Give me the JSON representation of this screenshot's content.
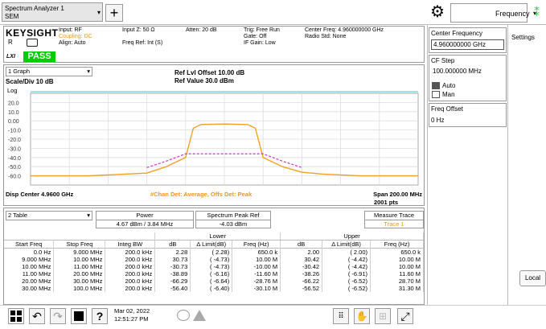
{
  "app": {
    "tab_title_line1": "Spectrum Analyzer 1",
    "tab_title_line2": "SEM"
  },
  "header": {
    "brand": "KEYSIGHT",
    "mode_letter": "R",
    "lxi": "LXI",
    "status": "PASS",
    "input": [
      "Input: RF",
      "Coupling: DC",
      "Align: Auto"
    ],
    "input_z": [
      "Input Z: 50 Ω",
      "",
      "Freq Ref: Int (S)"
    ],
    "atten": [
      "Atten: 20 dB"
    ],
    "trig": [
      "Trig: Free Run",
      "Gate: Off",
      "IF Gain: Low"
    ],
    "center": [
      "Center Freq: 4.960000000 GHz",
      "Radio Std: None"
    ]
  },
  "graph": {
    "selector": "1 Graph",
    "ref_lvl_offset": "Ref Lvl Offset 10.00 dB",
    "ref_value": "Ref Value 30.0 dBm",
    "scale": "Scale/Div 10 dB",
    "log": "Log",
    "footer_left": "Disp Center 4.9600 GHz",
    "footer_mid": "#Chan Det: Average,  Offs Det: Peak",
    "footer_right": "Span 200.00 MHz",
    "footer_pts": "2001 pts"
  },
  "chart_data": {
    "type": "line",
    "xlabel": "",
    "ylabel": "",
    "ylim": [
      -70,
      30
    ],
    "yticks": [
      "20.0",
      "10.0",
      "0.00",
      "-10.0",
      "-20.0",
      "-30.0",
      "-40.0",
      "-50.0",
      "-60.0"
    ],
    "grid": true,
    "series": [
      {
        "color": "#f0a020",
        "x": [
          0,
          0.05,
          0.1,
          0.15,
          0.2,
          0.25,
          0.3,
          0.35,
          0.4,
          0.42,
          0.44,
          0.5,
          0.56,
          0.58,
          0.6,
          0.65,
          0.7,
          0.75,
          0.8,
          0.85,
          0.9,
          0.95,
          1
        ],
        "values": [
          -60,
          -60,
          -60,
          -60,
          -59,
          -58,
          -57,
          -50,
          -40,
          -8,
          -4,
          -3.5,
          -4,
          -8,
          -40,
          -50,
          -56,
          -58,
          -59,
          -60,
          -60,
          -60,
          -60
        ]
      },
      {
        "color": "#cc33cc",
        "x": [
          0.3,
          0.35,
          0.4,
          0.6,
          0.65,
          0.7
        ],
        "values": [
          -51,
          -44,
          -36,
          -36,
          -44,
          -51
        ]
      }
    ]
  },
  "table_panel": {
    "selector": "2 Table",
    "power_label": "Power",
    "power_value": "4.67 dBm / 3.84 MHz",
    "peak_label": "Spectrum Peak Ref",
    "peak_value": "-4.03 dBm",
    "measure_label": "Measure Trace",
    "measure_value": "Trace 1",
    "lower": "Lower",
    "upper": "Upper",
    "columns": [
      "Start Freq",
      "Stop Freq",
      "Integ BW",
      "dB",
      "Δ Limit(dB)",
      "Freq (Hz)",
      "dB",
      "Δ Limit(dB)",
      "Freq (Hz)"
    ],
    "rows": [
      [
        "0.0 Hz",
        "9.000 MHz",
        "200.0 kHz",
        "2.28",
        "( 2.28)",
        "650.0 k",
        "2.00",
        "( 2.00)",
        "650.0 k"
      ],
      [
        "9.000 MHz",
        "10.00 MHz",
        "200.0 kHz",
        "30.73",
        "( -4.73)",
        "10.00 M",
        "30.42",
        "( -4.42)",
        "10.00 M"
      ],
      [
        "10.00 MHz",
        "11.00 MHz",
        "200.0 kHz",
        "-30.73",
        "( -4.73)",
        "-10.00 M",
        "-30.42",
        "( -4.42)",
        "10.00 M"
      ],
      [
        "11.00 MHz",
        "20.00 MHz",
        "200.0 kHz",
        "-38.89",
        "( -6.16)",
        "-11.60 M",
        "-38.26",
        "( -6.91)",
        "11.60 M"
      ],
      [
        "20.00 MHz",
        "30.00 MHz",
        "200.0 kHz",
        "-66.29",
        "( -6.64)",
        "-28.76 M",
        "-66.22",
        "( -6.52)",
        "28.70 M"
      ],
      [
        "30.00 MHz",
        "100.0 MHz",
        "200.0 kHz",
        "-56.40",
        "( -6.40)",
        "-30.10 M",
        "-56.52",
        "( -6.52)",
        "31.30 M"
      ]
    ]
  },
  "taskbar": {
    "date": "Mar 02, 2022",
    "time": "12:51:27 PM"
  },
  "right_panel": {
    "menu_label": "Frequency",
    "settings_tab": "Settings",
    "local_button": "Local",
    "center_freq_label": "Center Frequency",
    "center_freq_value": "4.960000000 GHz",
    "cf_step_label": "CF Step",
    "cf_step_value": "100.000000 MHz",
    "auto_label": "Auto",
    "man_label": "Man",
    "freq_offset_label": "Freq Offset",
    "freq_offset_value": "0 Hz"
  }
}
